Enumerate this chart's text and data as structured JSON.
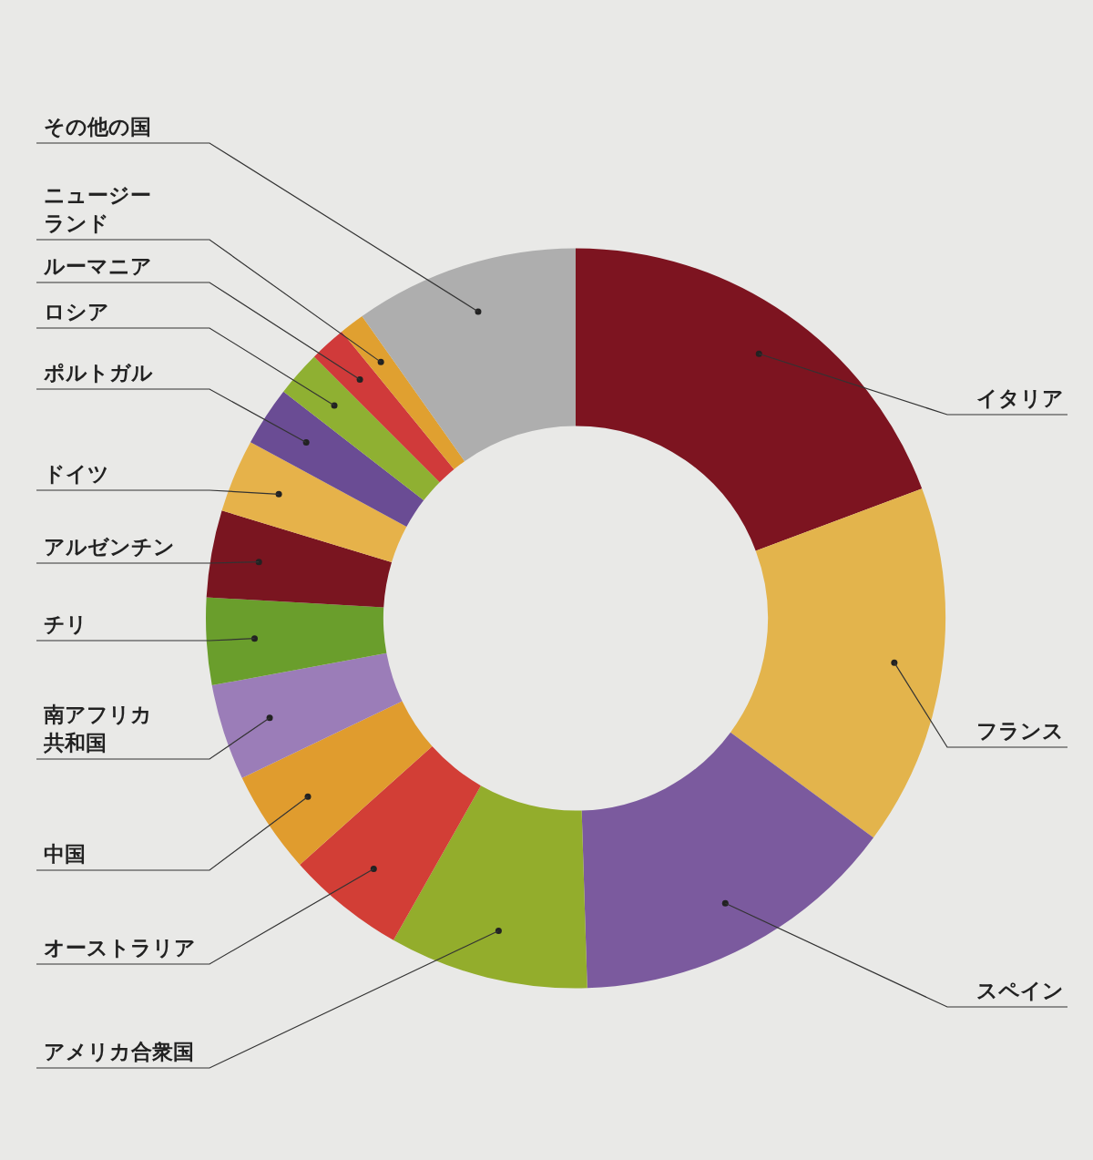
{
  "chart_data": {
    "type": "donut",
    "categories": [
      "イタリア",
      "フランス",
      "スペイン",
      "アメリカ合衆国",
      "オーストラリア",
      "中国",
      "南アフリカ共和国",
      "チリ",
      "アルゼンチン",
      "ドイツ",
      "ポルトガル",
      "ロシア",
      "ルーマニア",
      "ニュージーランド",
      "その他の国"
    ],
    "values": [
      19.3,
      15.8,
      14.4,
      8.7,
      5.2,
      4.5,
      4.2,
      3.8,
      3.8,
      3.2,
      2.6,
      2.0,
      1.6,
      1.1,
      9.8
    ],
    "colors": [
      "#7d1420",
      "#e3b44c",
      "#7b5a9e",
      "#93ad2c",
      "#d23e36",
      "#e09c2e",
      "#9b7db8",
      "#6a9e2c",
      "#7a1520",
      "#e6b24a",
      "#6a4c94",
      "#8fb032",
      "#d03a3a",
      "#e0a030",
      "#aeaeae"
    ],
    "legend": false
  }
}
